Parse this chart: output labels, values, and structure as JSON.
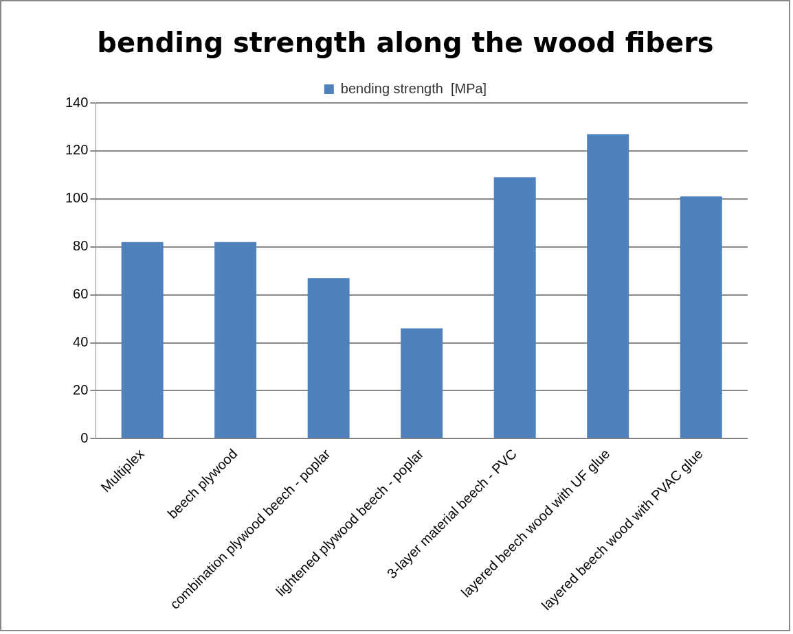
{
  "chart_data": {
    "type": "bar",
    "title": "bending strength along the wood fibers",
    "categories": [
      "Multiplex",
      "beech plywood",
      "combination plywood beech - poplar",
      "lightened plywood beech - poplar",
      "3-layer material beech - PVC",
      "layered beech wood with UF glue",
      "layered beech wood with PVAC glue"
    ],
    "series": [
      {
        "name": "bending strength  [MPa]",
        "color": "#4f81bd",
        "values": [
          82,
          82,
          67,
          46,
          109,
          127,
          101
        ]
      }
    ],
    "ylim": [
      0,
      140
    ],
    "yticks": [
      0,
      20,
      40,
      60,
      80,
      100,
      120,
      140
    ],
    "grid": "y",
    "legend": "top"
  }
}
